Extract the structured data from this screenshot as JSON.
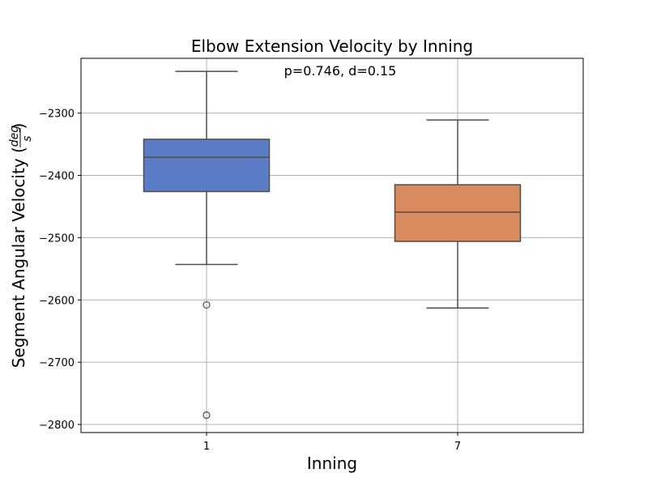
{
  "chart_data": {
    "type": "box",
    "title": "Elbow Extension Velocity by Inning",
    "annotation": "p=0.746, d=0.15",
    "xlabel": "Inning",
    "ylabel": {
      "prefix": "Segment Angular Velocity (",
      "frac_num": "deg",
      "frac_den": "s",
      "suffix": ")"
    },
    "categories": [
      "1",
      "7"
    ],
    "ylim": [
      -2813,
      -2212
    ],
    "yticks": [
      -2300,
      -2400,
      -2500,
      -2600,
      -2700,
      -2800
    ],
    "ytick_labels": [
      "−2300",
      "−2400",
      "−2500",
      "−2600",
      "−2700",
      "−2800"
    ],
    "grid": true,
    "boxes": [
      {
        "category": "1",
        "color": "#5a7dc6",
        "whisker_low": -2543,
        "q1": -2426,
        "median": -2371,
        "q3": -2342,
        "whisker_high": -2233,
        "outliers": [
          -2608,
          -2785
        ]
      },
      {
        "category": "7",
        "color": "#d98a5f",
        "whisker_low": -2613,
        "q1": -2506,
        "median": -2459,
        "q3": -2415,
        "whisker_high": -2311,
        "outliers": []
      }
    ]
  }
}
